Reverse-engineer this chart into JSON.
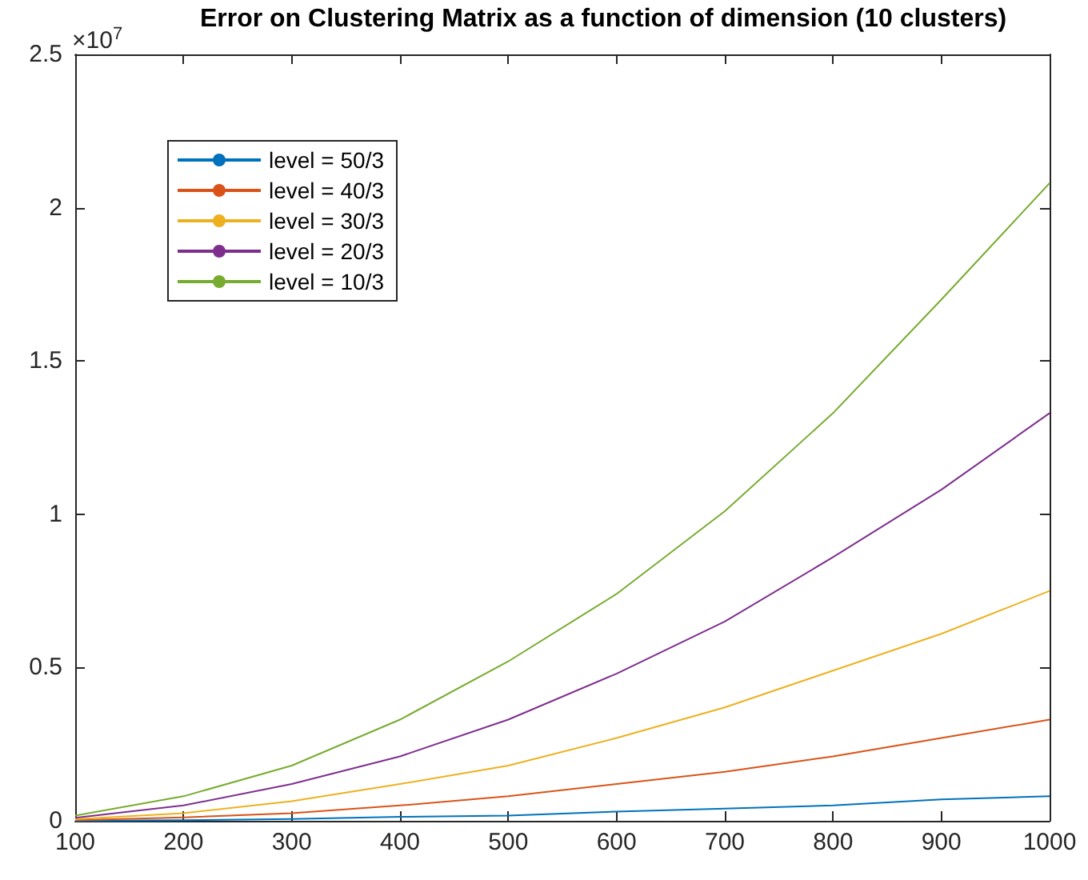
{
  "chart_data": {
    "type": "line",
    "title": "Error on Clustering Matrix as a function of dimension (10 clusters)",
    "annotations": [
      "×10$^{7}$"
    ],
    "x": [
      100,
      200,
      300,
      400,
      500,
      600,
      700,
      800,
      900,
      1000
    ],
    "series": [
      {
        "name": "level = 50/3",
        "color": "#0072bd",
        "values": [
          0.0,
          0.002,
          0.006,
          0.013,
          0.017,
          0.03,
          0.04,
          0.05,
          0.07,
          0.08
        ]
      },
      {
        "name": "level = 40/3",
        "color": "#d95319",
        "values": [
          0.002,
          0.011,
          0.025,
          0.05,
          0.08,
          0.12,
          0.16,
          0.21,
          0.27,
          0.33
        ]
      },
      {
        "name": "level = 30/3",
        "color": "#edb120",
        "values": [
          0.005,
          0.025,
          0.064,
          0.12,
          0.18,
          0.27,
          0.37,
          0.49,
          0.61,
          0.75
        ]
      },
      {
        "name": "level = 20/3",
        "color": "#7e2f8e",
        "values": [
          0.01,
          0.05,
          0.12,
          0.21,
          0.33,
          0.48,
          0.65,
          0.86,
          1.08,
          1.33
        ]
      },
      {
        "name": "level = 10/3",
        "color": "#77ac30",
        "values": [
          0.017,
          0.08,
          0.18,
          0.33,
          0.52,
          0.74,
          1.01,
          1.33,
          1.7,
          2.08
        ]
      }
    ],
    "xlim": [
      100,
      1000
    ],
    "xticks": [
      100,
      200,
      300,
      400,
      500,
      600,
      700,
      800,
      900,
      1000
    ],
    "ylim": [
      0,
      2.5
    ],
    "yticks": [
      0,
      0.5,
      1,
      1.5,
      2,
      2.5
    ],
    "grid": false,
    "legend": "top left",
    "marker": "none",
    "line_style": "solid"
  }
}
